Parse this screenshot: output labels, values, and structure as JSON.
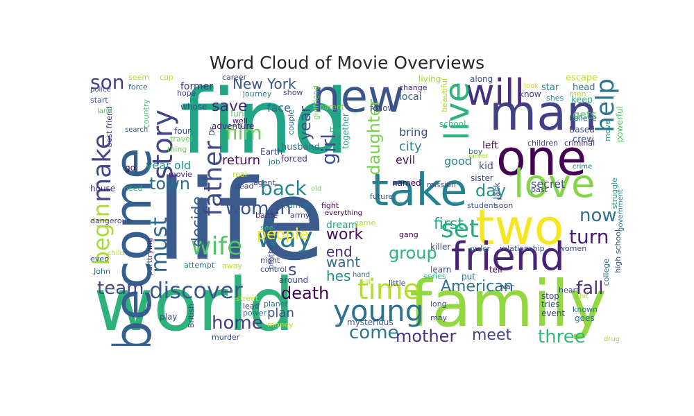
{
  "figure": {
    "title": "Word Cloud of Movie Overviews"
  },
  "word_cloud": {
    "words": [
      {
        "text": "find",
        "color": "#21A585"
      },
      {
        "text": "life",
        "color": "#3B5C8C"
      },
      {
        "text": "world",
        "color": "#2DB37A"
      },
      {
        "text": "family",
        "color": "#93D741"
      },
      {
        "text": "become",
        "color": "#35608D"
      },
      {
        "text": "new",
        "color": "#3A548C"
      },
      {
        "text": "man",
        "color": "#424086"
      },
      {
        "text": "one",
        "color": "#440154"
      },
      {
        "text": "two",
        "color": "#F6E620"
      },
      {
        "text": "take",
        "color": "#27808E"
      },
      {
        "text": "will",
        "color": "#46307E"
      },
      {
        "text": "love",
        "color": "#85D54A"
      },
      {
        "text": "friend",
        "color": "#482475"
      },
      {
        "text": "live",
        "color": "#2EB37C"
      },
      {
        "text": "young",
        "color": "#2C718E"
      },
      {
        "text": "time",
        "color": "#B5DE2B"
      },
      {
        "text": "story",
        "color": "#414487"
      },
      {
        "text": "make",
        "color": "#3F4788"
      },
      {
        "text": "help",
        "color": "#2C738E"
      },
      {
        "text": "must",
        "color": "#31688E"
      },
      {
        "text": "father",
        "color": "#3E4A89"
      },
      {
        "text": "wife",
        "color": "#52C569"
      },
      {
        "text": "way",
        "color": "#2A788E"
      },
      {
        "text": "set",
        "color": "#27AD81"
      },
      {
        "text": "discover",
        "color": "#375A8C"
      },
      {
        "text": "begin",
        "color": "#A8DB34"
      },
      {
        "text": "son",
        "color": "#433E85"
      },
      {
        "text": "film",
        "color": "#6CCE59"
      },
      {
        "text": "girl",
        "color": "#3D4D8A"
      },
      {
        "text": "woman",
        "color": "#39568C"
      },
      {
        "text": "back",
        "color": "#26828E"
      },
      {
        "text": "home",
        "color": "#433E85"
      },
      {
        "text": "turn",
        "color": "#482173"
      },
      {
        "text": "three",
        "color": "#37B878"
      },
      {
        "text": "mother",
        "color": "#46337F"
      },
      {
        "text": "come",
        "color": "#2A788E"
      },
      {
        "text": "town",
        "color": "#2E6E8E"
      },
      {
        "text": "day",
        "color": "#21918C"
      },
      {
        "text": "New York",
        "color": "#39568C"
      },
      {
        "text": "now",
        "color": "#2D718E"
      },
      {
        "text": "fall",
        "color": "#472D7B"
      },
      {
        "text": "American",
        "color": "#2C738E"
      },
      {
        "text": "daughter",
        "color": "#7AD151"
      },
      {
        "text": "save",
        "color": "#482677"
      },
      {
        "text": "team",
        "color": "#3E4A89"
      },
      {
        "text": "group",
        "color": "#2EB37C"
      },
      {
        "text": "death",
        "color": "#440154"
      },
      {
        "text": "year",
        "color": "#3B528B"
      },
      {
        "text": "decide",
        "color": "#355F8D"
      },
      {
        "text": "people",
        "color": "#F8E621"
      },
      {
        "text": "first",
        "color": "#22A884"
      },
      {
        "text": "work",
        "color": "#470D60"
      },
      {
        "text": "end",
        "color": "#482878"
      },
      {
        "text": "want",
        "color": "#31688E"
      },
      {
        "text": "hes",
        "color": "#21918C"
      },
      {
        "text": "meet",
        "color": "#404688"
      },
      {
        "text": "s",
        "color": "#3E4989"
      },
      {
        "text": "return",
        "color": "#471164"
      },
      {
        "text": "city",
        "color": "#26828E"
      },
      {
        "text": "face",
        "color": "#31688E"
      },
      {
        "text": "year old",
        "color": "#21918C"
      },
      {
        "text": "dream",
        "color": "#22A884"
      },
      {
        "text": "secret",
        "color": "#3B528B"
      },
      {
        "text": "plan",
        "color": "#3A548C"
      },
      {
        "text": "evil",
        "color": "#471365"
      },
      {
        "text": "good",
        "color": "#26828E"
      },
      {
        "text": "kid",
        "color": "#3B528B"
      },
      {
        "text": "left",
        "color": "#471365"
      },
      {
        "text": "bring",
        "color": "#3D4E8A"
      },
      {
        "text": "gets",
        "color": "#5EC962"
      },
      {
        "text": "together",
        "color": "#1FA187"
      },
      {
        "text": "former",
        "color": "#46337F"
      },
      {
        "text": "local",
        "color": "#33638D"
      },
      {
        "text": "school",
        "color": "#35B779"
      },
      {
        "text": "adventure",
        "color": "#482475"
      },
      {
        "text": "Based",
        "color": "#3F4788"
      },
      {
        "text": "crew",
        "color": "#38588C"
      },
      {
        "text": "cop",
        "color": "#B5DE2B"
      },
      {
        "text": "seem",
        "color": "#ADDC30"
      },
      {
        "text": "force",
        "color": "#2E6E8E"
      },
      {
        "text": "police",
        "color": "#3F4788"
      },
      {
        "text": "career",
        "color": "#404688"
      },
      {
        "text": "journey",
        "color": "#2A788E"
      },
      {
        "text": "show",
        "color": "#3E4A89"
      },
      {
        "text": "change",
        "color": "#482878"
      },
      {
        "text": "living",
        "color": "#9FDA3A"
      },
      {
        "text": "along",
        "color": "#3A548C"
      },
      {
        "text": "escape",
        "color": "#C2DF23"
      },
      {
        "text": "star",
        "color": "#26828E"
      },
      {
        "text": "head",
        "color": "#2A788E"
      },
      {
        "text": "men",
        "color": "#ADDC30"
      },
      {
        "text": "keep",
        "color": "#2EB37C"
      },
      {
        "text": "shes",
        "color": "#287C8E"
      },
      {
        "text": "know",
        "color": "#433E85"
      },
      {
        "text": "look",
        "color": "#C8E020"
      },
      {
        "text": "hope",
        "color": "#453781"
      },
      {
        "text": "whose",
        "color": "#3A548C"
      },
      {
        "text": "start",
        "color": "#3B528B"
      },
      {
        "text": "fun",
        "color": "#5EC962"
      },
      {
        "text": "well",
        "color": "#440154"
      },
      {
        "text": "parent",
        "color": "#7AD151"
      },
      {
        "text": "follow",
        "color": "#3F4788"
      },
      {
        "text": "couple",
        "color": "#2C728E"
      },
      {
        "text": "girlfriend",
        "color": "#7AD151"
      },
      {
        "text": "country",
        "color": "#50C46A"
      },
      {
        "text": "Dr",
        "color": "#3B528B"
      },
      {
        "text": "travel",
        "color": "#6CCE59"
      },
      {
        "text": "four",
        "color": "#3E4A89"
      },
      {
        "text": "thing",
        "color": "#6CCE59"
      },
      {
        "text": "best friend",
        "color": "#46337F"
      },
      {
        "text": "search",
        "color": "#3B528B"
      },
      {
        "text": "land",
        "color": "#54C568"
      },
      {
        "text": "Earth",
        "color": "#3E4A89"
      },
      {
        "text": "job",
        "color": "#2A788E"
      },
      {
        "text": "husband",
        "color": "#2C718E"
      },
      {
        "text": "forced",
        "color": "#46307E"
      },
      {
        "text": "big",
        "color": "#35B779"
      },
      {
        "text": "beautiful",
        "color": "#ADDC30"
      },
      {
        "text": "believe",
        "color": "#2E6E8E"
      },
      {
        "text": "powerful",
        "color": "#5DC863"
      },
      {
        "text": "children",
        "color": "#404688"
      },
      {
        "text": "criminal",
        "color": "#482475"
      },
      {
        "text": "move",
        "color": "#21918C"
      },
      {
        "text": "boy",
        "color": "#31688E"
      },
      {
        "text": "never",
        "color": "#ADDC30"
      },
      {
        "text": "crime",
        "color": "#2A788E"
      },
      {
        "text": "go",
        "color": "#440154"
      },
      {
        "text": "movie",
        "color": "#482878"
      },
      {
        "text": "real",
        "color": "#C2DF23"
      },
      {
        "text": "need",
        "color": "#22A884"
      },
      {
        "text": "house",
        "color": "#482878"
      },
      {
        "text": "dead",
        "color": "#404688"
      },
      {
        "text": "agent",
        "color": "#3F4788"
      },
      {
        "text": "named",
        "color": "#440154"
      },
      {
        "text": "future",
        "color": "#3B528B"
      },
      {
        "text": "old",
        "color": "#7AD151"
      },
      {
        "text": "mission",
        "color": "#3E4A89"
      },
      {
        "text": "sister",
        "color": "#3F4788"
      },
      {
        "text": "past",
        "color": "#404688"
      },
      {
        "text": "struggle",
        "color": "#1FA187"
      },
      {
        "text": "government",
        "color": "#2C728E"
      },
      {
        "text": "Jack",
        "color": "#3E4A89"
      },
      {
        "text": "student",
        "color": "#3A548C"
      },
      {
        "text": "soon",
        "color": "#433E85"
      },
      {
        "text": "dangerous",
        "color": "#433E85"
      },
      {
        "text": "human",
        "color": "#2C728E"
      },
      {
        "text": "fight",
        "color": "#440154"
      },
      {
        "text": "battle",
        "color": "#482878"
      },
      {
        "text": "army",
        "color": "#433E85"
      },
      {
        "text": "everything",
        "color": "#440154"
      },
      {
        "text": "game",
        "color": "#ADDC30"
      },
      {
        "text": "see",
        "color": "#2EB37C"
      },
      {
        "text": "gang",
        "color": "#440154"
      },
      {
        "text": "killer",
        "color": "#3E4A89"
      },
      {
        "text": "order",
        "color": "#2A788E"
      },
      {
        "text": "relationship",
        "color": "#3E4A89"
      },
      {
        "text": "women",
        "color": "#3E4A89"
      },
      {
        "text": "high school",
        "color": "#3A548C"
      },
      {
        "text": "college",
        "color": "#2C728E"
      },
      {
        "text": "child",
        "color": "#ADDC30"
      },
      {
        "text": "trying",
        "color": "#482475"
      },
      {
        "text": "even",
        "color": "#3A548C"
      },
      {
        "text": "John",
        "color": "#2C718E"
      },
      {
        "text": "part",
        "color": "#3E4A89"
      },
      {
        "text": "attempt",
        "color": "#2C728E"
      },
      {
        "text": "away",
        "color": "#C2DF23"
      },
      {
        "text": "brother",
        "color": "#404688"
      },
      {
        "text": "night",
        "color": "#433E85"
      },
      {
        "text": "control",
        "color": "#3E4A89"
      },
      {
        "text": "learn",
        "color": "#3F4788"
      },
      {
        "text": "tell",
        "color": "#440154"
      },
      {
        "text": "series",
        "color": "#2EB37C"
      },
      {
        "text": "put",
        "color": "#2C728E"
      },
      {
        "text": "heart",
        "color": "#3E4A89"
      },
      {
        "text": "hit",
        "color": "#ADDC30"
      },
      {
        "text": "known",
        "color": "#2A788E"
      },
      {
        "text": "goes",
        "color": "#2E6E8E"
      },
      {
        "text": "event",
        "color": "#3F4788"
      },
      {
        "text": "tries",
        "color": "#3A548C"
      },
      {
        "text": "stop",
        "color": "#404688"
      },
      {
        "text": "war",
        "color": "#404688"
      },
      {
        "text": "around",
        "color": "#3E4A89"
      },
      {
        "text": "hand",
        "color": "#2C728E"
      },
      {
        "text": "kill",
        "color": "#ADDC30"
      },
      {
        "text": "little",
        "color": "#3E4A89"
      },
      {
        "text": "long",
        "color": "#3A548C"
      },
      {
        "text": "may",
        "color": "#3F4788"
      },
      {
        "text": "street",
        "color": "#ADDC30"
      },
      {
        "text": "planet",
        "color": "#2E6E8E"
      },
      {
        "text": "lead",
        "color": "#433E85"
      },
      {
        "text": "power",
        "color": "#2C728E"
      },
      {
        "text": "play",
        "color": "#3F4788"
      },
      {
        "text": "British",
        "color": "#3E4A89"
      },
      {
        "text": "mysterious",
        "color": "#3A548C"
      },
      {
        "text": "money",
        "color": "#C2DF23"
      },
      {
        "text": "murder",
        "color": "#404688"
      },
      {
        "text": "drug",
        "color": "#ADDC30"
      }
    ]
  }
}
